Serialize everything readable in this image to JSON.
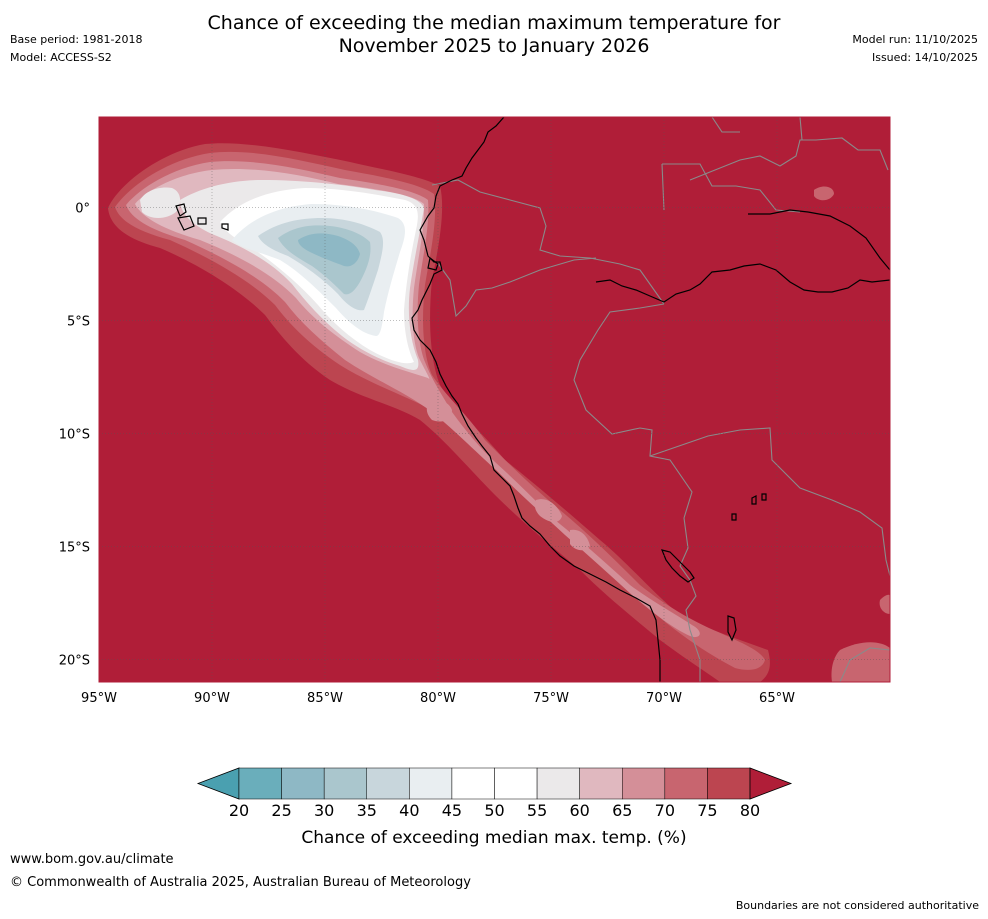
{
  "header": {
    "title_line1": "Chance of exceeding the median maximum temperature for",
    "title_line2": "November 2025 to January 2026",
    "base_period": "Base period: 1981-2018",
    "model": "Model: ACCESS-S2",
    "model_run": "Model run: 11/10/2025",
    "issued": "Issued: 14/10/2025"
  },
  "map": {
    "lon_range": [
      -95,
      -60
    ],
    "lat_range": [
      -21,
      4
    ],
    "lon_ticks": [
      {
        "value": -95,
        "label": "95°W"
      },
      {
        "value": -90,
        "label": "90°W"
      },
      {
        "value": -85,
        "label": "85°W"
      },
      {
        "value": -80,
        "label": "80°W"
      },
      {
        "value": -75,
        "label": "75°W"
      },
      {
        "value": -70,
        "label": "70°W"
      },
      {
        "value": -65,
        "label": "65°W"
      }
    ],
    "lat_ticks": [
      {
        "value": 0,
        "label": "0°"
      },
      {
        "value": -5,
        "label": "5°S"
      },
      {
        "value": -10,
        "label": "10°S"
      },
      {
        "value": -15,
        "label": "15°S"
      },
      {
        "value": -20,
        "label": "20°S"
      }
    ],
    "background_color": "#b01e38"
  },
  "colorbar": {
    "label": "Chance of exceeding median max. temp. (%)",
    "ticks": [
      "20",
      "25",
      "30",
      "35",
      "40",
      "45",
      "50",
      "55",
      "60",
      "65",
      "70",
      "75",
      "80"
    ],
    "colors": [
      "#4aa0b0",
      "#6aaebb",
      "#8eb8c5",
      "#aac6cd",
      "#c8d6dc",
      "#e9eef1",
      "#ffffff",
      "#ffffff",
      "#ebe9ea",
      "#e0b8bf",
      "#d48f98",
      "#c8656f",
      "#bc4550",
      "#b01e38"
    ]
  },
  "footer": {
    "website": "www.bom.gov.au/climate",
    "copyright": "© Commonwealth of Australia 2025, Australian Bureau of Meteorology",
    "disclaimer": "Boundaries are not considered authoritative"
  }
}
